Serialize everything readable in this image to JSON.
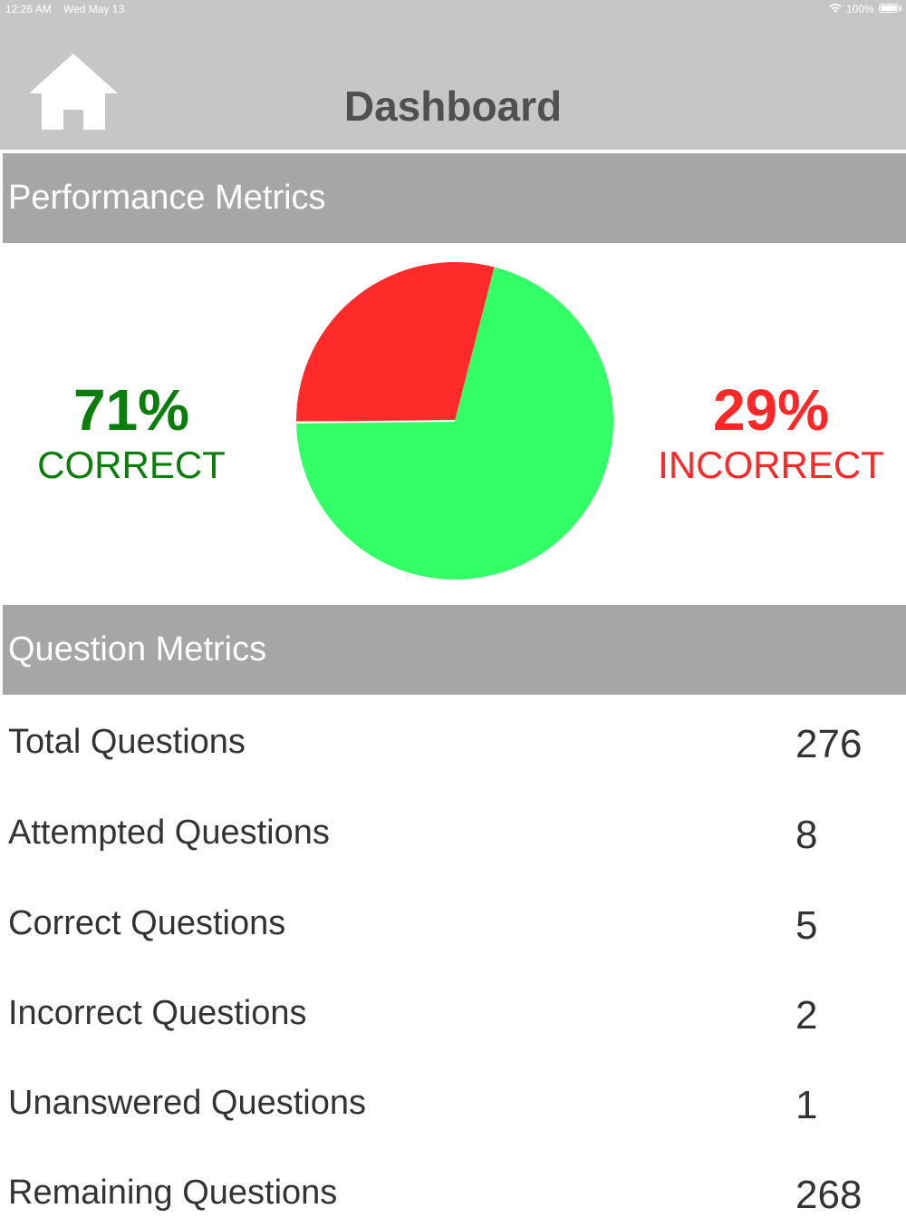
{
  "status_bar": {
    "time": "12:26 AM",
    "date": "Wed May 13",
    "battery": "100%"
  },
  "header": {
    "title": "Dashboard",
    "home_icon": "home-icon"
  },
  "performance": {
    "title": "Performance Metrics",
    "correct_pct": "71%",
    "correct_label": "CORRECT",
    "incorrect_pct": "29%",
    "incorrect_label": "INCORRECT",
    "colors": {
      "correct_text": "#0b7d0b",
      "incorrect_text": "#ff2727",
      "correct_slice": "#33ff66",
      "incorrect_slice": "#ff2a2a",
      "header_bg": "#a6a6a6",
      "topbar_bg": "#c6c6c6"
    }
  },
  "chart_data": {
    "type": "pie",
    "categories": [
      "Correct",
      "Incorrect"
    ],
    "values": [
      71,
      29
    ],
    "colors": [
      "#33ff66",
      "#ff2a2a"
    ]
  },
  "questions": {
    "title": "Question Metrics",
    "rows": [
      {
        "label": "Total Questions",
        "value": "276"
      },
      {
        "label": "Attempted Questions",
        "value": "8"
      },
      {
        "label": "Correct Questions",
        "value": "5"
      },
      {
        "label": "Incorrect Questions",
        "value": "2"
      },
      {
        "label": "Unanswered Questions",
        "value": "1"
      },
      {
        "label": "Remaining Questions",
        "value": "268"
      }
    ]
  }
}
